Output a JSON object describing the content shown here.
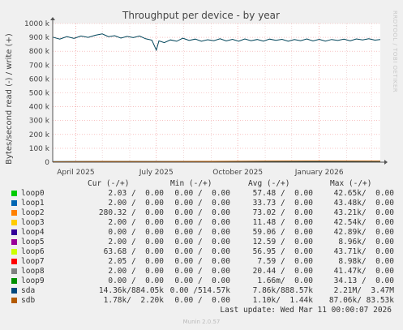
{
  "chart_data": {
    "type": "line",
    "title": "Throughput per device - by year",
    "ylabel": "Bytes/second read (-) / write (+)",
    "ylim": [
      0,
      1000000
    ],
    "yticks": [
      {
        "value": 0,
        "label": "0"
      },
      {
        "value": 100000,
        "label": "100 k"
      },
      {
        "value": 200000,
        "label": "200 k"
      },
      {
        "value": 300000,
        "label": "300 k"
      },
      {
        "value": 400000,
        "label": "400 k"
      },
      {
        "value": 500000,
        "label": "500 k"
      },
      {
        "value": 600000,
        "label": "600 k"
      },
      {
        "value": 700000,
        "label": "700 k"
      },
      {
        "value": 800000,
        "label": "800 k"
      },
      {
        "value": 900000,
        "label": "900 k"
      },
      {
        "value": 1000000,
        "label": "1000 k"
      }
    ],
    "xlim": [
      "2025-03-06",
      "2026-03-11"
    ],
    "xticks": [
      {
        "date": "2025-04-01",
        "label": "April 2025"
      },
      {
        "date": "2025-07-01",
        "label": "July 2025"
      },
      {
        "date": "2025-10-01",
        "label": "October 2025"
      },
      {
        "date": "2026-01-01",
        "label": "January 2026"
      }
    ],
    "grid": true,
    "series": [
      {
        "name": "sda",
        "color": "#00455a",
        "points": [
          [
            "2025-03-06",
            902000
          ],
          [
            "2025-03-14",
            888000
          ],
          [
            "2025-03-22",
            905000
          ],
          [
            "2025-03-30",
            893000
          ],
          [
            "2025-04-07",
            910000
          ],
          [
            "2025-04-15",
            900000
          ],
          [
            "2025-04-23",
            915000
          ],
          [
            "2025-05-01",
            925000
          ],
          [
            "2025-05-08",
            905000
          ],
          [
            "2025-05-15",
            912000
          ],
          [
            "2025-05-22",
            895000
          ],
          [
            "2025-05-29",
            907000
          ],
          [
            "2025-06-05",
            898000
          ],
          [
            "2025-06-12",
            910000
          ],
          [
            "2025-06-19",
            890000
          ],
          [
            "2025-06-26",
            880000
          ],
          [
            "2025-07-01",
            808000
          ],
          [
            "2025-07-04",
            875000
          ],
          [
            "2025-07-10",
            862000
          ],
          [
            "2025-07-17",
            882000
          ],
          [
            "2025-07-24",
            872000
          ],
          [
            "2025-07-31",
            894000
          ],
          [
            "2025-08-07",
            878000
          ],
          [
            "2025-08-14",
            888000
          ],
          [
            "2025-08-21",
            872000
          ],
          [
            "2025-08-28",
            883000
          ],
          [
            "2025-09-04",
            876000
          ],
          [
            "2025-09-11",
            890000
          ],
          [
            "2025-09-18",
            874000
          ],
          [
            "2025-09-25",
            886000
          ],
          [
            "2025-10-02",
            872000
          ],
          [
            "2025-10-09",
            889000
          ],
          [
            "2025-10-16",
            876000
          ],
          [
            "2025-10-23",
            885000
          ],
          [
            "2025-10-30",
            873000
          ],
          [
            "2025-11-06",
            888000
          ],
          [
            "2025-11-13",
            879000
          ],
          [
            "2025-11-20",
            886000
          ],
          [
            "2025-11-27",
            872000
          ],
          [
            "2025-12-04",
            884000
          ],
          [
            "2025-12-11",
            876000
          ],
          [
            "2025-12-18",
            889000
          ],
          [
            "2025-12-25",
            874000
          ],
          [
            "2026-01-01",
            886000
          ],
          [
            "2026-01-08",
            873000
          ],
          [
            "2026-01-15",
            885000
          ],
          [
            "2026-01-22",
            878000
          ],
          [
            "2026-01-29",
            887000
          ],
          [
            "2026-02-05",
            875000
          ],
          [
            "2026-02-12",
            889000
          ],
          [
            "2026-02-19",
            882000
          ],
          [
            "2026-02-26",
            890000
          ],
          [
            "2026-03-05",
            880000
          ],
          [
            "2026-03-11",
            884000
          ]
        ]
      },
      {
        "name": "sda read",
        "color": "#00455a",
        "points": [
          [
            "2025-03-06",
            4000
          ],
          [
            "2025-06-01",
            5000
          ],
          [
            "2025-09-01",
            4000
          ],
          [
            "2025-12-01",
            6000
          ],
          [
            "2026-03-11",
            5000
          ]
        ]
      },
      {
        "name": "sdb",
        "color": "#b85c00",
        "points": [
          [
            "2025-03-06",
            3000
          ],
          [
            "2025-05-01",
            5000
          ],
          [
            "2025-07-01",
            4000
          ],
          [
            "2025-09-01",
            6000
          ],
          [
            "2025-11-01",
            8000
          ],
          [
            "2026-01-01",
            9000
          ],
          [
            "2026-03-11",
            8000
          ]
        ]
      }
    ]
  },
  "side_label": "RRDTOOL / TOBI OETIKER",
  "legend": {
    "headers": {
      "cur": "Cur (-/+)",
      "min": "Min (-/+)",
      "avg": "Avg (-/+)",
      "max": "Max (-/+)"
    },
    "rows": [
      {
        "label": "loop0",
        "color": "#00cc00",
        "cur": "2.03 /  0.00",
        "min": "0.00 /  0.00",
        "avg": "57.48 /  0.00",
        "max": "42.65k/  0.00"
      },
      {
        "label": "loop1",
        "color": "#0066b3",
        "cur": "2.00 /  0.00",
        "min": "0.00 /  0.00",
        "avg": "33.73 /  0.00",
        "max": "43.48k/  0.00"
      },
      {
        "label": "loop2",
        "color": "#ff8000",
        "cur": "280.32 /  0.00",
        "min": "0.00 /  0.00",
        "avg": "73.02 /  0.00",
        "max": "43.21k/  0.00"
      },
      {
        "label": "loop3",
        "color": "#ffcc00",
        "cur": "2.00 /  0.00",
        "min": "0.00 /  0.00",
        "avg": "11.48 /  0.00",
        "max": "42.54k/  0.00"
      },
      {
        "label": "loop4",
        "color": "#330099",
        "cur": "0.00 /  0.00",
        "min": "0.00 /  0.00",
        "avg": "59.06 /  0.00",
        "max": "42.89k/  0.00"
      },
      {
        "label": "loop5",
        "color": "#990099",
        "cur": "2.00 /  0.00",
        "min": "0.00 /  0.00",
        "avg": "12.59 /  0.00",
        "max": "8.96k/  0.00"
      },
      {
        "label": "loop6",
        "color": "#ccff00",
        "cur": "63.68 /  0.00",
        "min": "0.00 /  0.00",
        "avg": "56.95 /  0.00",
        "max": "43.71k/  0.00"
      },
      {
        "label": "loop7",
        "color": "#ff0000",
        "cur": "2.05 /  0.00",
        "min": "0.00 /  0.00",
        "avg": "7.59 /  0.00",
        "max": "8.98k/  0.00"
      },
      {
        "label": "loop8",
        "color": "#808080",
        "cur": "2.00 /  0.00",
        "min": "0.00 /  0.00",
        "avg": "20.44 /  0.00",
        "max": "41.47k/  0.00"
      },
      {
        "label": "loop9",
        "color": "#008f00",
        "cur": "0.00 /  0.00",
        "min": "0.00 /  0.00",
        "avg": "1.66m/  0.00",
        "max": "34.13 /  0.00"
      },
      {
        "label": "sda",
        "color": "#00487d",
        "cur": "14.36k/884.05k",
        "min": "0.00 /514.57k",
        "avg": "7.86k/888.57k",
        "max": "2.21M/  3.47M"
      },
      {
        "label": "sdb",
        "color": "#b35a00",
        "cur": "1.78k/  2.20k",
        "min": "0.00 /  0.00",
        "avg": "1.10k/  1.44k",
        "max": "87.06k/ 83.53k"
      }
    ]
  },
  "last_update": "Last update: Wed Mar 11 00:00:07 2026",
  "munin_version": "Munin 2.0.57"
}
